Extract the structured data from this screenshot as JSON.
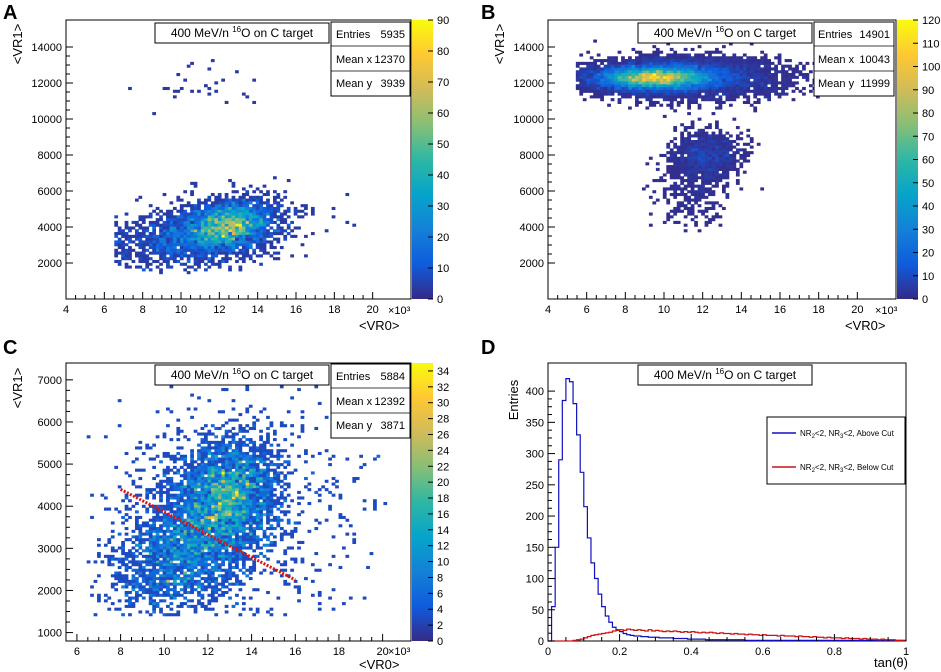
{
  "panels": [
    {
      "label": "A"
    },
    {
      "label": "B"
    },
    {
      "label": "C"
    },
    {
      "label": "D"
    }
  ],
  "chart_data": [
    {
      "id": "A",
      "type": "heatmap",
      "title_pre": "400 MeV/n ",
      "title_sup": "16",
      "title_post": "O on C target",
      "xlabel": "<VR0>",
      "ylabel": "<VR1>",
      "x_exponent": "×10³",
      "xlim": [
        4,
        22
      ],
      "ylim": [
        0,
        15500
      ],
      "xticks": [
        4,
        6,
        8,
        10,
        12,
        14,
        16,
        18,
        20
      ],
      "yticks": [
        2000,
        4000,
        6000,
        8000,
        10000,
        12000,
        14000
      ],
      "zlim": [
        0,
        90
      ],
      "zticks": [
        0,
        10,
        20,
        30,
        40,
        50,
        60,
        70,
        80,
        90
      ],
      "stats": [
        {
          "k": "Entries",
          "v": "5935"
        },
        {
          "k": "Mean x",
          "v": "12370"
        },
        {
          "k": "Mean y",
          "v": "3939"
        }
      ],
      "clusters": [
        {
          "x": 12.5,
          "y": 4100,
          "sx": 1.1,
          "sy": 700,
          "n": 2200,
          "rho": 0.25
        },
        {
          "x": 11.0,
          "y": 3600,
          "sx": 2.2,
          "sy": 900,
          "n": 1800,
          "rho": 0.35
        },
        {
          "x": 10.5,
          "y": 11800,
          "sx": 1.5,
          "sy": 900,
          "n": 28,
          "rho": 0
        }
      ],
      "peak": 90,
      "bounds": {
        "xmin": 6.5,
        "xmax": 20,
        "ymin": 1500,
        "ymax": 14600
      }
    },
    {
      "id": "B",
      "type": "heatmap",
      "title_pre": "400 MeV/n ",
      "title_sup": "16",
      "title_post": "O on C target",
      "xlabel": "<VR0>",
      "ylabel": "<VR1>",
      "x_exponent": "×10³",
      "xlim": [
        4,
        22
      ],
      "ylim": [
        0,
        15500
      ],
      "xticks": [
        4,
        6,
        8,
        10,
        12,
        14,
        16,
        18,
        20
      ],
      "yticks": [
        2000,
        4000,
        6000,
        8000,
        10000,
        12000,
        14000
      ],
      "zlim": [
        0,
        120
      ],
      "zticks": [
        0,
        10,
        20,
        30,
        40,
        50,
        60,
        70,
        80,
        90,
        100,
        110,
        120
      ],
      "stats": [
        {
          "k": "Entries",
          "v": "14901"
        },
        {
          "k": "Mean x",
          "v": "10043"
        },
        {
          "k": "Mean y",
          "v": "11999"
        }
      ],
      "clusters": [
        {
          "x": 9.5,
          "y": 12300,
          "sx": 1.6,
          "sy": 350,
          "n": 9500,
          "rho": 0
        },
        {
          "x": 11.5,
          "y": 12300,
          "sx": 2.5,
          "sy": 600,
          "n": 3200,
          "rho": 0
        },
        {
          "x": 12.2,
          "y": 8000,
          "sx": 0.9,
          "sy": 700,
          "n": 900,
          "rho": 0
        },
        {
          "x": 11.5,
          "y": 5800,
          "sx": 1.0,
          "sy": 1100,
          "n": 300,
          "rho": 0
        }
      ],
      "peak": 120,
      "bounds": {
        "xmin": 5.5,
        "xmax": 18.5,
        "ymin": 3800,
        "ymax": 14600
      }
    },
    {
      "id": "C",
      "type": "heatmap",
      "title_pre": "400 MeV/n ",
      "title_sup": "16",
      "title_post": "O on C target",
      "xlabel": "<VR0>",
      "ylabel": "<VR1>",
      "x_exponent": "×10³",
      "xlim": [
        5.5,
        21.3
      ],
      "ylim": [
        800,
        7400
      ],
      "xticks": [
        6,
        8,
        10,
        12,
        14,
        16,
        18,
        20
      ],
      "yticks": [
        1000,
        2000,
        3000,
        4000,
        5000,
        6000,
        7000
      ],
      "zlim": [
        0,
        35
      ],
      "zticks": [
        0,
        2,
        4,
        6,
        8,
        10,
        12,
        14,
        16,
        18,
        20,
        22,
        24,
        26,
        28,
        30,
        32,
        34
      ],
      "stats": [
        {
          "k": "Entries",
          "v": "5884"
        },
        {
          "k": "Mean x",
          "v": "12392"
        },
        {
          "k": "Mean y",
          "v": "3871"
        }
      ],
      "clusters": [
        {
          "x": 12.8,
          "y": 4300,
          "sx": 1.1,
          "sy": 650,
          "n": 2400,
          "rho": 0.1
        },
        {
          "x": 10.8,
          "y": 2900,
          "sx": 1.6,
          "sy": 700,
          "n": 1900,
          "rho": 0.3
        },
        {
          "x": 13.0,
          "y": 3800,
          "sx": 2.8,
          "sy": 1300,
          "n": 900,
          "rho": 0
        }
      ],
      "peak": 34,
      "bounds": {
        "xmin": 6.5,
        "xmax": 20.2,
        "ymin": 1400,
        "ymax": 7100
      },
      "cut_line": {
        "x": [
          8.0,
          16.0
        ],
        "y": [
          4400,
          2250
        ],
        "color": "#dd1111"
      }
    },
    {
      "id": "D",
      "type": "line",
      "title_pre": "400 MeV/n ",
      "title_sup": "16",
      "title_post": "O on C target",
      "xlabel": "tan(θ)",
      "ylabel": "Entries",
      "xlim": [
        0,
        1
      ],
      "ylim": [
        0,
        445
      ],
      "xticks": [
        0,
        0.2,
        0.4,
        0.6,
        0.8,
        1
      ],
      "xticklabels": [
        "0",
        "0.2",
        "0.4",
        "0.6",
        "0.8",
        "1"
      ],
      "yticks": [
        0,
        50,
        100,
        150,
        200,
        250,
        300,
        350,
        400
      ],
      "legend": [
        {
          "pre": "NR",
          "s1": "2",
          "mid": "<2, NR",
          "s2": "3",
          "post": "<2, Above Cut",
          "color": "#1010c0"
        },
        {
          "pre": "NR",
          "s1": "2",
          "mid": "<2, NR",
          "s2": "3",
          "post": "<2, Below Cut",
          "color": "#cc1111"
        }
      ],
      "series": [
        {
          "name": "NR2<2, NR3<2, Above Cut",
          "color": "#1010c0",
          "values": [
            0,
            55,
            150,
            290,
            385,
            420,
            415,
            380,
            330,
            270,
            215,
            165,
            125,
            100,
            75,
            55,
            40,
            30,
            22,
            18,
            15,
            12,
            10,
            9,
            8,
            8,
            7,
            7,
            6,
            6,
            6,
            5,
            5,
            5,
            5,
            4,
            4,
            4,
            4,
            3,
            3,
            3,
            3,
            3,
            2,
            2,
            2,
            2,
            2,
            2,
            2,
            2,
            2,
            2,
            2,
            1,
            1,
            1,
            1,
            1,
            1,
            1,
            1,
            1,
            1,
            1,
            1,
            1,
            1,
            1,
            1,
            1,
            1,
            1,
            1,
            1,
            1,
            1,
            1,
            1,
            1,
            1,
            1,
            1,
            1,
            1,
            1,
            1,
            1,
            1,
            1,
            1,
            1,
            1,
            1,
            1,
            1,
            1,
            1,
            1
          ]
        },
        {
          "name": "NR2<2, NR3<2, Below Cut",
          "color": "#cc1111",
          "values": [
            0,
            0,
            0,
            0,
            0,
            0,
            0,
            1,
            2,
            3,
            5,
            7,
            9,
            10,
            11,
            12,
            13,
            14,
            16,
            17,
            18,
            17,
            19,
            18,
            17,
            18,
            17,
            16,
            18,
            16,
            17,
            16,
            15,
            16,
            15,
            16,
            15,
            14,
            15,
            14,
            15,
            14,
            13,
            14,
            13,
            14,
            13,
            12,
            13,
            12,
            12,
            11,
            12,
            11,
            11,
            10,
            11,
            10,
            10,
            9,
            10,
            9,
            9,
            9,
            8,
            9,
            8,
            8,
            8,
            7,
            8,
            7,
            7,
            6,
            7,
            6,
            6,
            5,
            6,
            5,
            5,
            5,
            4,
            5,
            4,
            4,
            4,
            3,
            4,
            3,
            3,
            3,
            2,
            3,
            2,
            2,
            2,
            1,
            1,
            0
          ]
        }
      ]
    }
  ]
}
